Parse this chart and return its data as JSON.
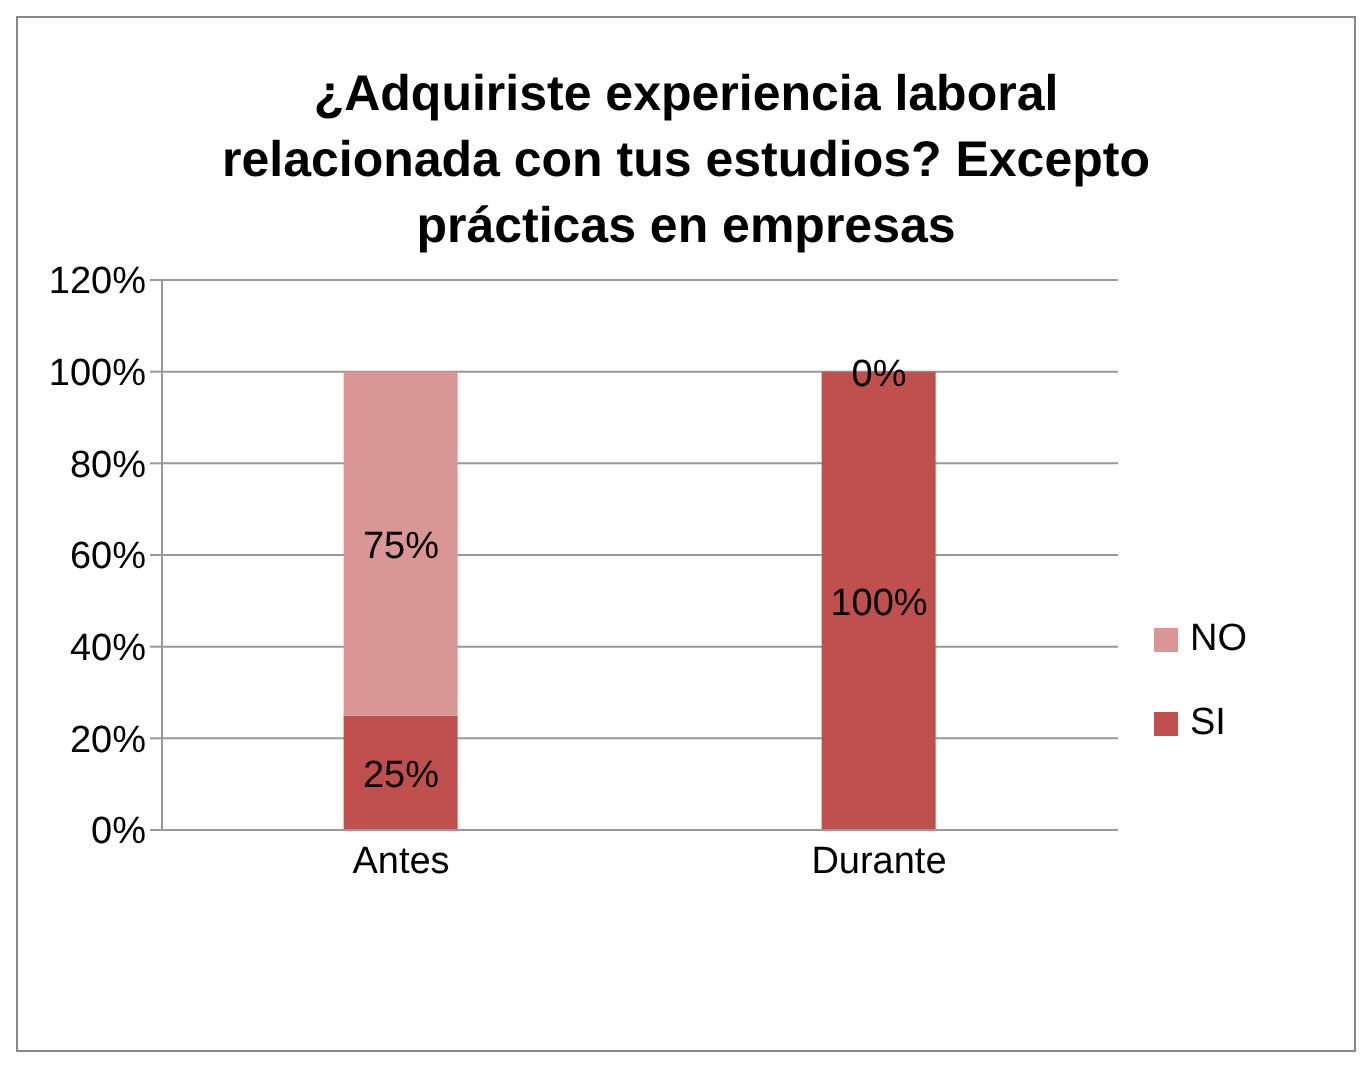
{
  "chart_data": {
    "type": "bar",
    "title": "¿Adquiriste experiencia laboral relacionada con tus estudios? Excepto prácticas en empresas",
    "categories": [
      "Antes",
      "Durante"
    ],
    "stacked": true,
    "series": [
      {
        "name": "SI",
        "color": "#c0504d",
        "values": [
          25,
          100
        ],
        "value_labels": [
          "25%",
          "100%"
        ]
      },
      {
        "name": "NO",
        "color": "#d99694",
        "values": [
          75,
          0
        ],
        "value_labels": [
          "75%",
          "0%"
        ]
      }
    ],
    "ylim": [
      0,
      120
    ],
    "yticks": [
      {
        "value": 0,
        "label": "0%"
      },
      {
        "value": 20,
        "label": "20%"
      },
      {
        "value": 40,
        "label": "40%"
      },
      {
        "value": 60,
        "label": "60%"
      },
      {
        "value": 80,
        "label": "80%"
      },
      {
        "value": 100,
        "label": "100%"
      },
      {
        "value": 120,
        "label": "120%"
      }
    ],
    "grid": "y",
    "legend": "right"
  }
}
